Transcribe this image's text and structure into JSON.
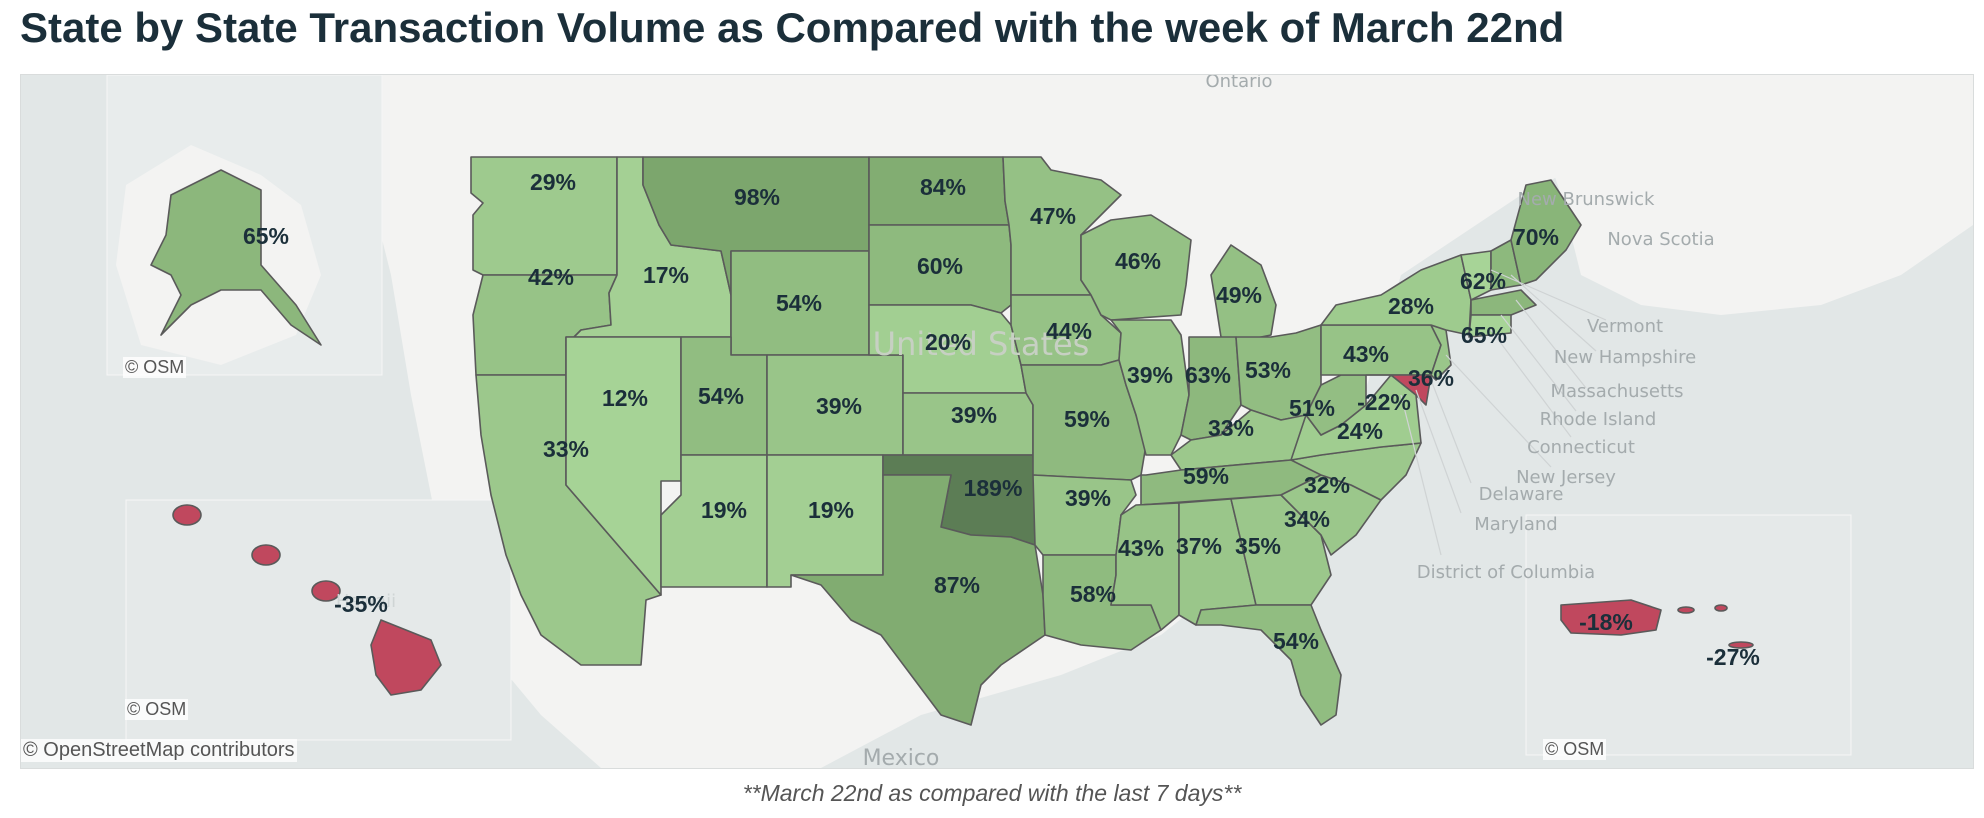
{
  "title": "State by State Transaction Volume as Compared with the week of March 22nd",
  "footer_note": "**March 22nd as compared with the last 7 days**",
  "attribution": {
    "main": "© OpenStreetMap contributors",
    "inset": "© OSM"
  },
  "colors": {
    "negative": "#c0485e",
    "scale_light": "#a7d497",
    "scale_mid": "#7faa6f",
    "scale_dark": "#5c7d55",
    "label": "#1b2f3a"
  },
  "basemap_labels": [
    "Ontario",
    "New Brunswick",
    "Nova Scotia",
    "United States",
    "Mexico",
    "Hawaii"
  ],
  "callout_states": [
    "Vermont",
    "New Hampshire",
    "Massachusetts",
    "Rhode Island",
    "Connecticut",
    "New Jersey",
    "Delaware",
    "Maryland",
    "District of Columbia"
  ],
  "states": {
    "WA": "29%",
    "OR": "42%",
    "CA": "33%",
    "ID": "17%",
    "NV": "12%",
    "MT": "98%",
    "WY": "54%",
    "UT": "54%",
    "AZ": "19%",
    "CO": "39%",
    "NM": "19%",
    "ND": "84%",
    "SD": "60%",
    "NE": "20%",
    "KS": "39%",
    "OK": "189%",
    "TX": "87%",
    "MN": "47%",
    "IA": "44%",
    "MO": "59%",
    "AR": "39%",
    "LA": "58%",
    "WI": "46%",
    "IL": "39%",
    "MI": "49%",
    "IN": "63%",
    "OH": "53%",
    "KY": "33%",
    "TN": "59%",
    "MS": "43%",
    "AL": "37%",
    "GA": "35%",
    "FL": "54%",
    "SC": "34%",
    "NC": "32%",
    "VA": "24%",
    "WV": "51%",
    "PA": "43%",
    "NY": "28%",
    "ME": "70%",
    "NH": "62%",
    "MA": "65%",
    "NJ": "36%",
    "MD": "-22%",
    "AK": "65%",
    "HI": "-35%",
    "PR": "-18%",
    "VI": "-27%"
  }
}
